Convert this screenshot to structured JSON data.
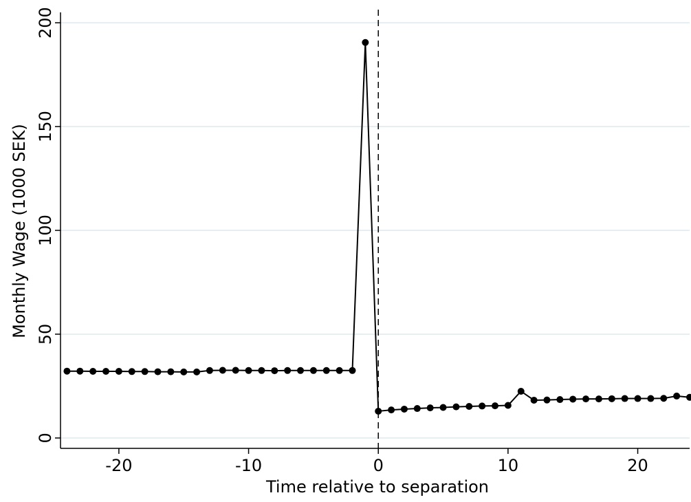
{
  "chart_data": {
    "type": "line",
    "title": "",
    "xlabel": "Time relative to separation",
    "ylabel": "Monthly Wage (1000 SEK)",
    "xlim": [
      -24.5,
      24
    ],
    "ylim": [
      -5,
      205
    ],
    "xticks": [
      -20,
      -10,
      0,
      10,
      20
    ],
    "xtick_labels": [
      "-20",
      "-10",
      "0",
      "10",
      "20"
    ],
    "yticks": [
      0,
      50,
      100,
      150,
      200
    ],
    "ytick_labels": [
      "0",
      "50",
      "100",
      "150",
      "200"
    ],
    "grid": "horizontal",
    "vline": 0,
    "series": [
      {
        "x": [
          -24,
          -23,
          -22,
          -21,
          -20,
          -19,
          -18,
          -17,
          -16,
          -15,
          -14,
          -13,
          -12,
          -11,
          -10,
          -9,
          -8,
          -7,
          -6,
          -5,
          -4,
          -3,
          -2,
          -1,
          0,
          1,
          2,
          3,
          4,
          5,
          6,
          7,
          8,
          9,
          10,
          11,
          12,
          13,
          14,
          15,
          16,
          17,
          18,
          19,
          20,
          21,
          22,
          23,
          24
        ],
        "y": [
          32.2,
          32.2,
          32.1,
          32.1,
          32.1,
          32.0,
          32.0,
          31.9,
          31.9,
          31.8,
          31.8,
          32.5,
          32.6,
          32.6,
          32.5,
          32.5,
          32.4,
          32.5,
          32.5,
          32.5,
          32.5,
          32.5,
          32.5,
          190.5,
          12.9,
          13.5,
          13.9,
          14.2,
          14.5,
          14.7,
          15.0,
          15.2,
          15.4,
          15.5,
          15.7,
          22.5,
          18.2,
          18.3,
          18.5,
          18.7,
          18.8,
          18.8,
          18.9,
          19.0,
          19.0,
          19.0,
          19.1,
          20.2,
          19.6
        ]
      }
    ]
  }
}
